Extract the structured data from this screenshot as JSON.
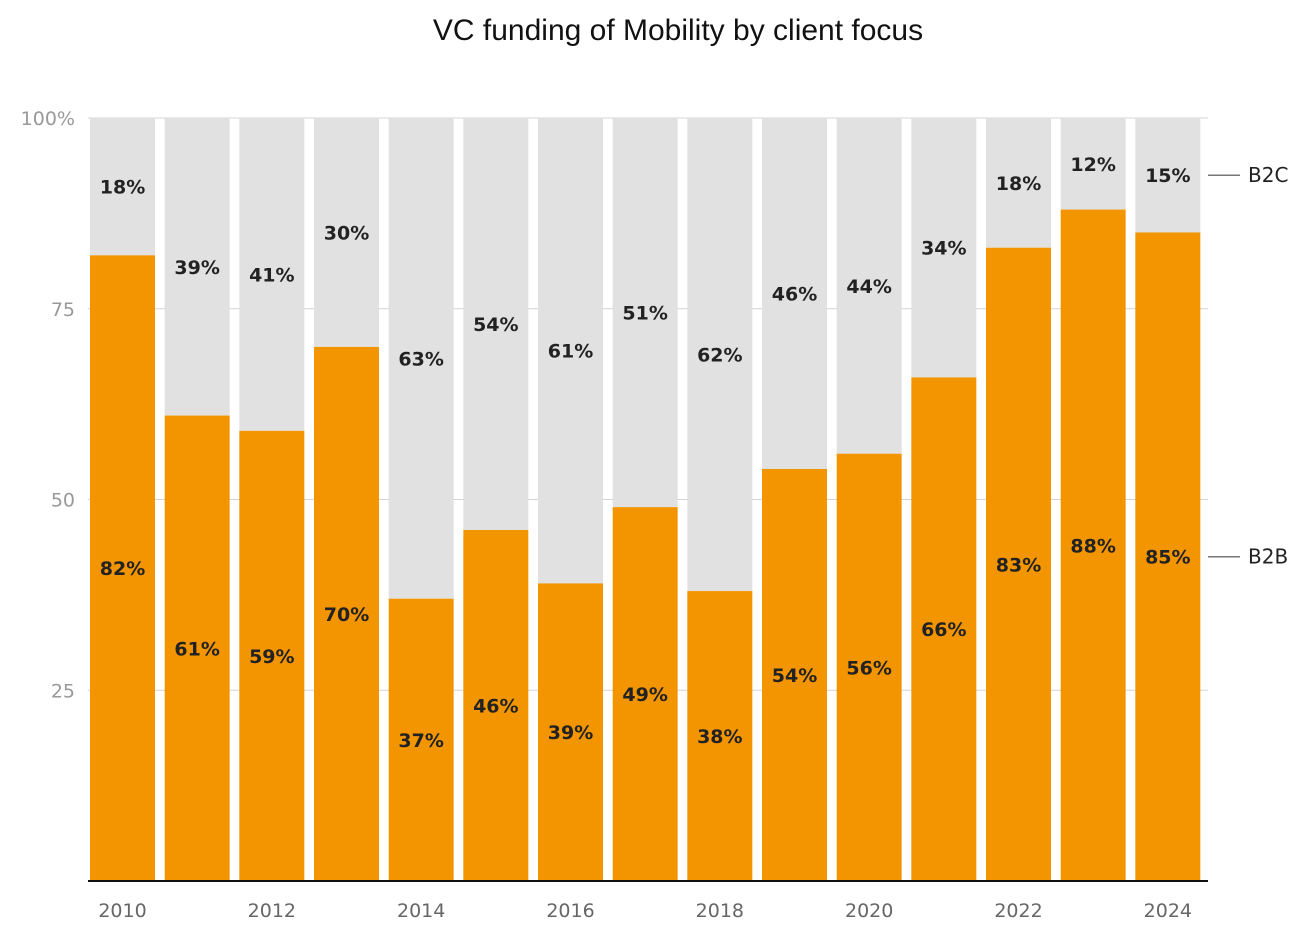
{
  "chart_data": {
    "type": "bar",
    "stacked": true,
    "title": "VC funding of Mobility by client focus",
    "xlabel": "",
    "ylabel": "",
    "ylim": [
      0,
      100
    ],
    "y_ticks": [
      "25",
      "50",
      "75",
      "100%"
    ],
    "y_tick_values": [
      25,
      50,
      75,
      100
    ],
    "categories": [
      "2010",
      "2011",
      "2012",
      "2013",
      "2014",
      "2015",
      "2016",
      "2017",
      "2018",
      "2019",
      "2020",
      "2021",
      "2022",
      "2023",
      "2024"
    ],
    "x_tick_labels": [
      "2010",
      "2012",
      "2014",
      "2016",
      "2018",
      "2020",
      "2022",
      "2024"
    ],
    "series": [
      {
        "name": "B2B",
        "color": "#f39500",
        "values": [
          82,
          61,
          59,
          70,
          37,
          46,
          39,
          49,
          38,
          54,
          56,
          66,
          83,
          88,
          85
        ]
      },
      {
        "name": "B2C",
        "color": "#e1e1e1",
        "values": [
          18,
          39,
          41,
          30,
          63,
          54,
          61,
          51,
          62,
          46,
          44,
          34,
          18,
          12,
          15
        ]
      }
    ],
    "legend": "right (direct labels)",
    "grid": true
  }
}
